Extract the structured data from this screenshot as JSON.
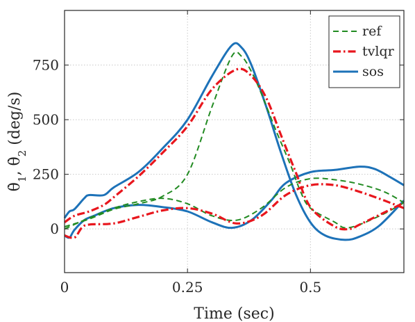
{
  "chart_data": {
    "type": "line",
    "title": "",
    "xlabel": "Time (sec)",
    "ylabel_parts": [
      "θ̇",
      "1",
      ",  ",
      "θ̇",
      "2",
      "  (deg/s)"
    ],
    "xlim": [
      0,
      0.69
    ],
    "ylim": [
      -200,
      1000
    ],
    "xticks": [
      0,
      0.25,
      0.5
    ],
    "xtick_labels": [
      "0",
      "0.25",
      "0.5"
    ],
    "yticks": [
      0,
      250,
      500,
      750
    ],
    "ytick_labels": [
      "0",
      "250",
      "500",
      "750"
    ],
    "grid": "dotted",
    "legend_position": "top-right",
    "series": [
      {
        "name": "ref",
        "color": "#228B22",
        "dash": "dashed",
        "curves": [
          [
            [
              0,
              10
            ],
            [
              0.05,
              45
            ],
            [
              0.1,
              90
            ],
            [
              0.15,
              115
            ],
            [
              0.2,
              150
            ],
            [
              0.25,
              250
            ],
            [
              0.3,
              560
            ],
            [
              0.34,
              790
            ],
            [
              0.36,
              790
            ],
            [
              0.38,
              720
            ],
            [
              0.4,
              620
            ],
            [
              0.43,
              450
            ],
            [
              0.46,
              290
            ],
            [
              0.48,
              170
            ],
            [
              0.5,
              95
            ],
            [
              0.55,
              30
            ],
            [
              0.57,
              5
            ],
            [
              0.6,
              20
            ],
            [
              0.65,
              70
            ],
            [
              0.69,
              120
            ]
          ],
          [
            [
              0,
              0
            ],
            [
              0.05,
              50
            ],
            [
              0.1,
              95
            ],
            [
              0.15,
              125
            ],
            [
              0.2,
              140
            ],
            [
              0.25,
              115
            ],
            [
              0.3,
              60
            ],
            [
              0.35,
              40
            ],
            [
              0.4,
              95
            ],
            [
              0.45,
              190
            ],
            [
              0.5,
              230
            ],
            [
              0.55,
              225
            ],
            [
              0.6,
              205
            ],
            [
              0.65,
              170
            ],
            [
              0.69,
              120
            ]
          ]
        ]
      },
      {
        "name": "tvlqr",
        "color": "#E8161D",
        "dash": "dashdot",
        "curves": [
          [
            [
              0,
              30
            ],
            [
              0.02,
              60
            ],
            [
              0.05,
              80
            ],
            [
              0.08,
              110
            ],
            [
              0.1,
              145
            ],
            [
              0.15,
              240
            ],
            [
              0.2,
              350
            ],
            [
              0.25,
              470
            ],
            [
              0.3,
              640
            ],
            [
              0.35,
              730
            ],
            [
              0.38,
              700
            ],
            [
              0.41,
              600
            ],
            [
              0.44,
              430
            ],
            [
              0.47,
              260
            ],
            [
              0.5,
              100
            ],
            [
              0.55,
              10
            ],
            [
              0.58,
              0
            ],
            [
              0.6,
              20
            ],
            [
              0.65,
              75
            ],
            [
              0.69,
              120
            ]
          ],
          [
            [
              0,
              -30
            ],
            [
              0.02,
              -40
            ],
            [
              0.035,
              5
            ],
            [
              0.05,
              20
            ],
            [
              0.1,
              25
            ],
            [
              0.15,
              55
            ],
            [
              0.2,
              85
            ],
            [
              0.25,
              95
            ],
            [
              0.3,
              70
            ],
            [
              0.35,
              25
            ],
            [
              0.4,
              60
            ],
            [
              0.45,
              155
            ],
            [
              0.5,
              200
            ],
            [
              0.55,
              200
            ],
            [
              0.6,
              170
            ],
            [
              0.65,
              130
            ],
            [
              0.69,
              95
            ]
          ]
        ]
      },
      {
        "name": "sos",
        "color": "#1D72B8",
        "dash": "solid",
        "curves": [
          [
            [
              0,
              50
            ],
            [
              0.01,
              80
            ],
            [
              0.02,
              90
            ],
            [
              0.04,
              140
            ],
            [
              0.05,
              155
            ],
            [
              0.08,
              155
            ],
            [
              0.1,
              190
            ],
            [
              0.15,
              260
            ],
            [
              0.2,
              370
            ],
            [
              0.25,
              500
            ],
            [
              0.3,
              700
            ],
            [
              0.34,
              840
            ],
            [
              0.36,
              830
            ],
            [
              0.38,
              750
            ],
            [
              0.41,
              560
            ],
            [
              0.44,
              350
            ],
            [
              0.47,
              160
            ],
            [
              0.5,
              30
            ],
            [
              0.53,
              -30
            ],
            [
              0.57,
              -50
            ],
            [
              0.6,
              -35
            ],
            [
              0.64,
              15
            ],
            [
              0.69,
              130
            ]
          ],
          [
            [
              0,
              -30
            ],
            [
              0.01,
              -40
            ],
            [
              0.02,
              -5
            ],
            [
              0.04,
              40
            ],
            [
              0.06,
              60
            ],
            [
              0.1,
              95
            ],
            [
              0.15,
              110
            ],
            [
              0.2,
              100
            ],
            [
              0.25,
              80
            ],
            [
              0.3,
              30
            ],
            [
              0.34,
              5
            ],
            [
              0.38,
              40
            ],
            [
              0.42,
              130
            ],
            [
              0.45,
              210
            ],
            [
              0.5,
              260
            ],
            [
              0.55,
              270
            ],
            [
              0.6,
              285
            ],
            [
              0.63,
              275
            ],
            [
              0.66,
              240
            ],
            [
              0.69,
              200
            ]
          ]
        ]
      }
    ]
  }
}
